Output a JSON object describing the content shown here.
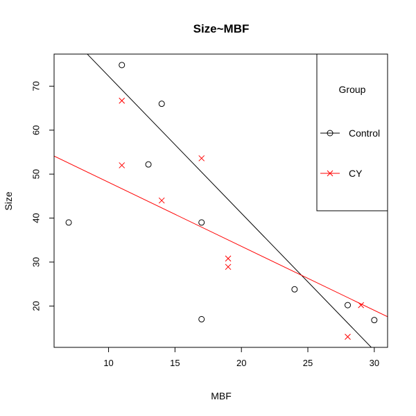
{
  "chart_data": {
    "type": "scatter",
    "title": "Size~MBF",
    "xlabel": "MBF",
    "ylabel": "Size",
    "xlim": [
      5.9,
      31.0
    ],
    "ylim": [
      10.6,
      77.3
    ],
    "x_ticks": [
      10,
      15,
      20,
      25,
      30
    ],
    "y_ticks": [
      20,
      30,
      40,
      50,
      60,
      70
    ],
    "grid": false,
    "legend": {
      "title": "Group",
      "placement": "top-right",
      "entries": [
        {
          "label": "Control",
          "marker": "circle",
          "color": "#000000"
        },
        {
          "label": "CY",
          "marker": "x",
          "color": "#ff0000"
        }
      ]
    },
    "series": [
      {
        "name": "Control",
        "color": "#000000",
        "marker": "circle",
        "points": [
          {
            "x": 7,
            "y": 39
          },
          {
            "x": 11,
            "y": 74.8
          },
          {
            "x": 13,
            "y": 52.2
          },
          {
            "x": 14,
            "y": 66
          },
          {
            "x": 17,
            "y": 39
          },
          {
            "x": 17,
            "y": 17
          },
          {
            "x": 24,
            "y": 23.8
          },
          {
            "x": 28,
            "y": 20.2
          },
          {
            "x": 30,
            "y": 16.8
          }
        ],
        "fit_line": {
          "intercept": 103.5,
          "slope": -3.12
        }
      },
      {
        "name": "CY",
        "color": "#ff0000",
        "marker": "x",
        "points": [
          {
            "x": 11,
            "y": 66.7
          },
          {
            "x": 11,
            "y": 52
          },
          {
            "x": 14,
            "y": 44
          },
          {
            "x": 17,
            "y": 53.6
          },
          {
            "x": 19,
            "y": 30.8
          },
          {
            "x": 19,
            "y": 28.9
          },
          {
            "x": 28,
            "y": 13
          },
          {
            "x": 29,
            "y": 20.2
          }
        ],
        "fit_line": {
          "intercept": 62.7,
          "slope": -1.456
        }
      }
    ]
  }
}
